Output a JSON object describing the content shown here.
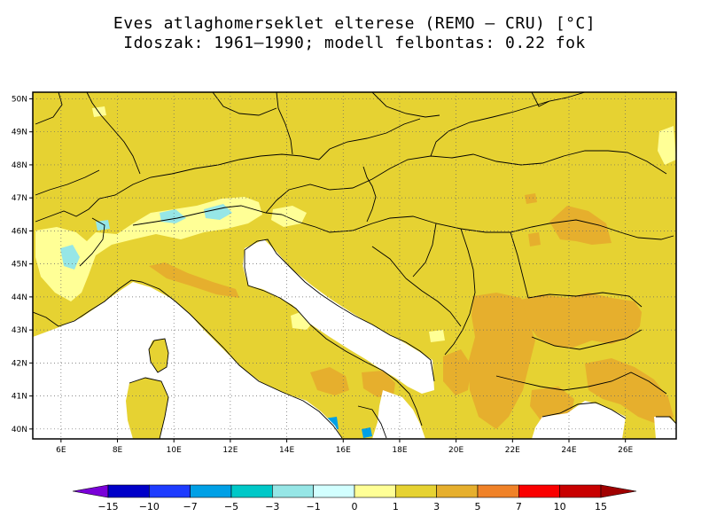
{
  "title_line1": "Eves atlaghomerseklet elterese (REMO – CRU) [°C]",
  "title_line2": "Idoszak: 1961–1990; modell felbontas: 0.22 fok",
  "map": {
    "lat_ticks": [
      "50N",
      "49N",
      "48N",
      "47N",
      "46N",
      "45N",
      "44N",
      "43N",
      "42N",
      "41N",
      "40N"
    ],
    "lon_ticks": [
      "6E",
      "8E",
      "10E",
      "12E",
      "14E",
      "16E",
      "18E",
      "20E",
      "22E",
      "24E",
      "26E"
    ],
    "lat_values": [
      50,
      49,
      48,
      47,
      46,
      45,
      44,
      43,
      42,
      41,
      40
    ],
    "lon_values": [
      6,
      8,
      10,
      12,
      14,
      16,
      18,
      20,
      22,
      24,
      26
    ],
    "lon_range": [
      5,
      27.8
    ],
    "lat_range": [
      39.7,
      50.2
    ]
  },
  "legend": {
    "labels": [
      "−15",
      "−10",
      "−7",
      "−5",
      "−3",
      "−1",
      "0",
      "1",
      "3",
      "5",
      "7",
      "10",
      "15"
    ],
    "colors": [
      "#7a00d8",
      "#0000c8",
      "#1e3cff",
      "#00a0e6",
      "#00c8c8",
      "#96e6e6",
      "#d2ffff",
      "#ffff96",
      "#e6d232",
      "#e6af2d",
      "#f08228",
      "#fa0000",
      "#c80000",
      "#a00000"
    ]
  },
  "palette": {
    "ocean": "#ffffff",
    "land_base": "#e6d232",
    "warm": "#e6af2d",
    "cool": "#ffff96",
    "cold": "#96e6e6",
    "colder": "#00a0e6"
  }
}
